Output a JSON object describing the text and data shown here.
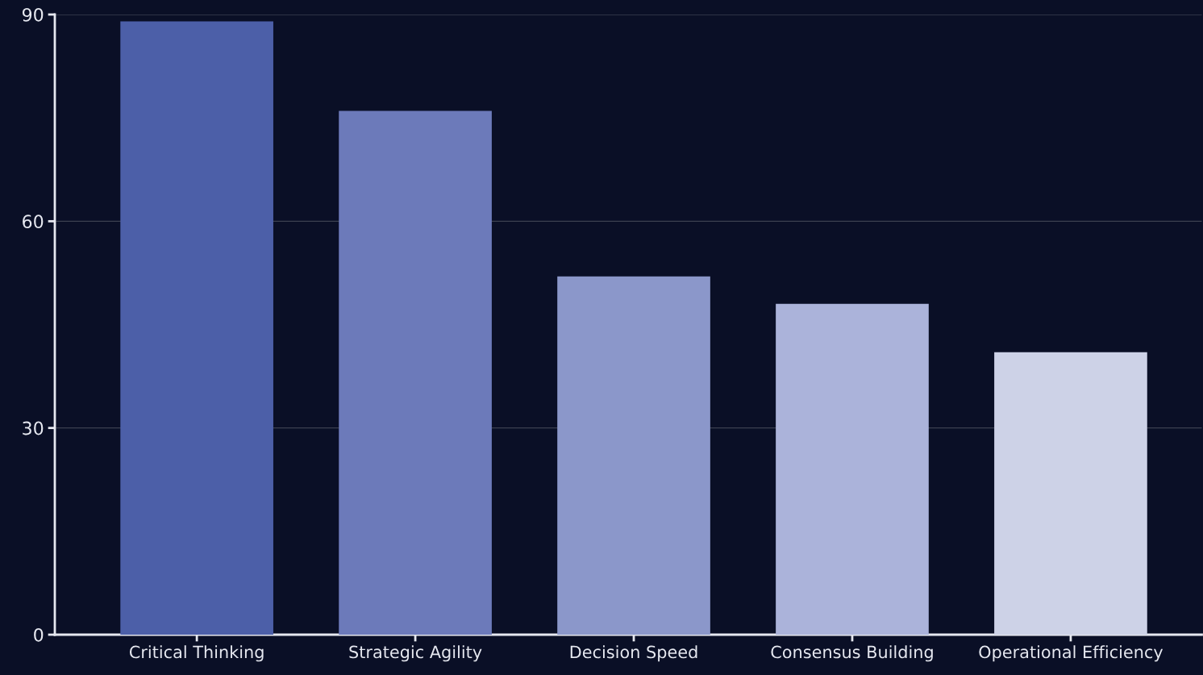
{
  "chart_data": {
    "type": "bar",
    "categories": [
      "Critical Thinking",
      "Strategic Agility",
      "Decision Speed",
      "Consensus Building",
      "Operational Efficiency"
    ],
    "values": [
      89,
      76,
      52,
      48,
      41
    ],
    "colors": [
      "#4c5fa8",
      "#6c7aba",
      "#8b97ca",
      "#abb3da",
      "#cdd2e7"
    ],
    "ylim": [
      0,
      90
    ],
    "yticks": [
      0,
      30,
      60,
      90
    ],
    "grid": "y",
    "legend": false
  }
}
